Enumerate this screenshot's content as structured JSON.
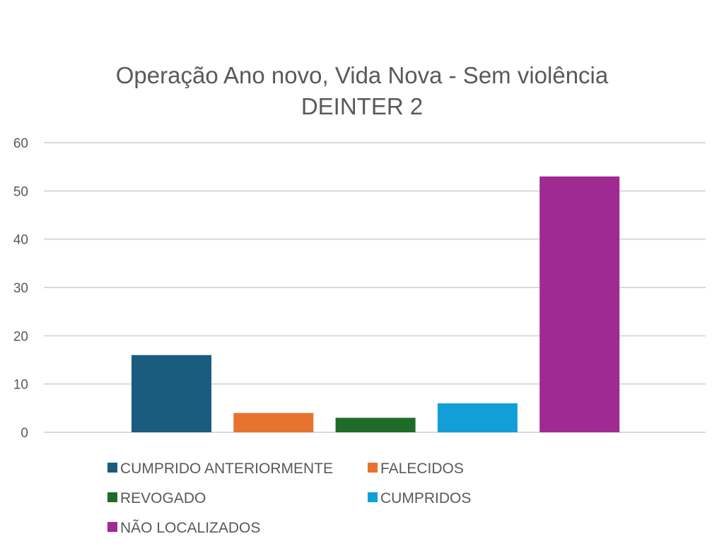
{
  "chart_data": {
    "type": "bar",
    "title": "Operação Ano novo, Vida Nova - Sem violência",
    "subtitle": "DEINTER 2",
    "xlabel": "",
    "ylabel": "",
    "ylim": [
      0,
      60
    ],
    "yticks": [
      "0",
      "10",
      "20",
      "30",
      "40",
      "50",
      "60"
    ],
    "grid": true,
    "legend_position": "bottom",
    "series": [
      {
        "name": "CUMPRIDO ANTERIORMENTE",
        "value": 16,
        "color": "#1a5c7e"
      },
      {
        "name": "FALECIDOS",
        "value": 4,
        "color": "#e87330"
      },
      {
        "name": "REVOGADO",
        "value": 3,
        "color": "#1e6b2a"
      },
      {
        "name": "CUMPRIDOS",
        "value": 6,
        "color": "#129fd8"
      },
      {
        "name": "NÃO LOCALIZADOS",
        "value": 53,
        "color": "#9e2a92"
      }
    ]
  }
}
